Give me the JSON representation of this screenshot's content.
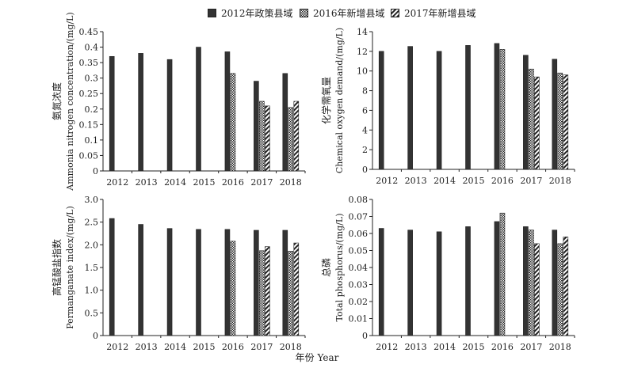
{
  "legend": [
    {
      "label": "2012年政策县域",
      "pattern": "solid"
    },
    {
      "label": "2016年新增县域",
      "pattern": "dots"
    },
    {
      "label": "2017年新增县域",
      "pattern": "diag"
    }
  ],
  "shared_xlabel": "年份 Year",
  "colors": {
    "bar_fill": "#333333",
    "axis": "#222222"
  },
  "chart_data": [
    {
      "type": "bar",
      "ylabel_cn": "氨氮浓度",
      "ylabel_en": "Ammonia nitrogen concentration/(mg/L)",
      "ylim": [
        0,
        0.45
      ],
      "yticks": [
        "0",
        "0.05",
        "0.1",
        "0.15",
        "0.2",
        "0.25",
        "0.3",
        "0.35",
        "0.4",
        "0.45"
      ],
      "categories": [
        "2012",
        "2013",
        "2014",
        "2015",
        "2016",
        "2017",
        "2018"
      ],
      "series": [
        {
          "name": "2012年政策县域",
          "values": [
            0.37,
            0.38,
            0.36,
            0.4,
            0.385,
            0.29,
            0.315
          ]
        },
        {
          "name": "2016年新增县域",
          "values": [
            null,
            null,
            null,
            null,
            0.315,
            0.225,
            0.205
          ]
        },
        {
          "name": "2017年新增县域",
          "values": [
            null,
            null,
            null,
            null,
            null,
            0.21,
            0.225
          ]
        }
      ]
    },
    {
      "type": "bar",
      "ylabel_cn": "化学需氧量",
      "ylabel_en": "Chemical oxygen demand/(mg/L)",
      "ylim": [
        0,
        14
      ],
      "yticks": [
        "0",
        "2",
        "4",
        "6",
        "8",
        "10",
        "12",
        "14"
      ],
      "categories": [
        "2012",
        "2013",
        "2014",
        "2015",
        "2016",
        "2017",
        "2018"
      ],
      "series": [
        {
          "name": "2012年政策县域",
          "values": [
            12.0,
            12.5,
            12.0,
            12.6,
            12.8,
            11.6,
            11.2
          ]
        },
        {
          "name": "2016年新增县域",
          "values": [
            null,
            null,
            null,
            null,
            12.2,
            10.2,
            9.8
          ]
        },
        {
          "name": "2017年新增县域",
          "values": [
            null,
            null,
            null,
            null,
            null,
            9.4,
            9.6
          ]
        }
      ]
    },
    {
      "type": "bar",
      "ylabel_cn": "高锰酸盐指数",
      "ylabel_en": "Permanganate index/(mg/L)",
      "ylim": [
        0,
        3.0
      ],
      "yticks": [
        "0",
        "0.5",
        "1.0",
        "1.5",
        "2.0",
        "2.5",
        "3.0"
      ],
      "categories": [
        "2012",
        "2013",
        "2014",
        "2015",
        "2016",
        "2017",
        "2018"
      ],
      "series": [
        {
          "name": "2012年政策县域",
          "values": [
            2.58,
            2.45,
            2.36,
            2.34,
            2.34,
            2.32,
            2.32
          ]
        },
        {
          "name": "2016年新增县域",
          "values": [
            null,
            null,
            null,
            null,
            2.08,
            1.87,
            1.86
          ]
        },
        {
          "name": "2017年新增县域",
          "values": [
            null,
            null,
            null,
            null,
            null,
            1.96,
            2.04
          ]
        }
      ]
    },
    {
      "type": "bar",
      "ylabel_cn": "总磷",
      "ylabel_en": "Total phosphorus/(mg/L)",
      "ylim": [
        0,
        0.08
      ],
      "yticks": [
        "0",
        "0.01",
        "0.02",
        "0.03",
        "0.04",
        "0.05",
        "0.06",
        "0.07",
        "0.08"
      ],
      "categories": [
        "2012",
        "2013",
        "2014",
        "2015",
        "2016",
        "2017",
        "2018"
      ],
      "series": [
        {
          "name": "2012年政策县域",
          "values": [
            0.063,
            0.062,
            0.061,
            0.064,
            0.067,
            0.064,
            0.062
          ]
        },
        {
          "name": "2016年新增县域",
          "values": [
            null,
            null,
            null,
            null,
            0.072,
            0.062,
            0.054
          ]
        },
        {
          "name": "2017年新增县域",
          "values": [
            null,
            null,
            null,
            null,
            null,
            0.054,
            0.058
          ]
        }
      ]
    }
  ]
}
